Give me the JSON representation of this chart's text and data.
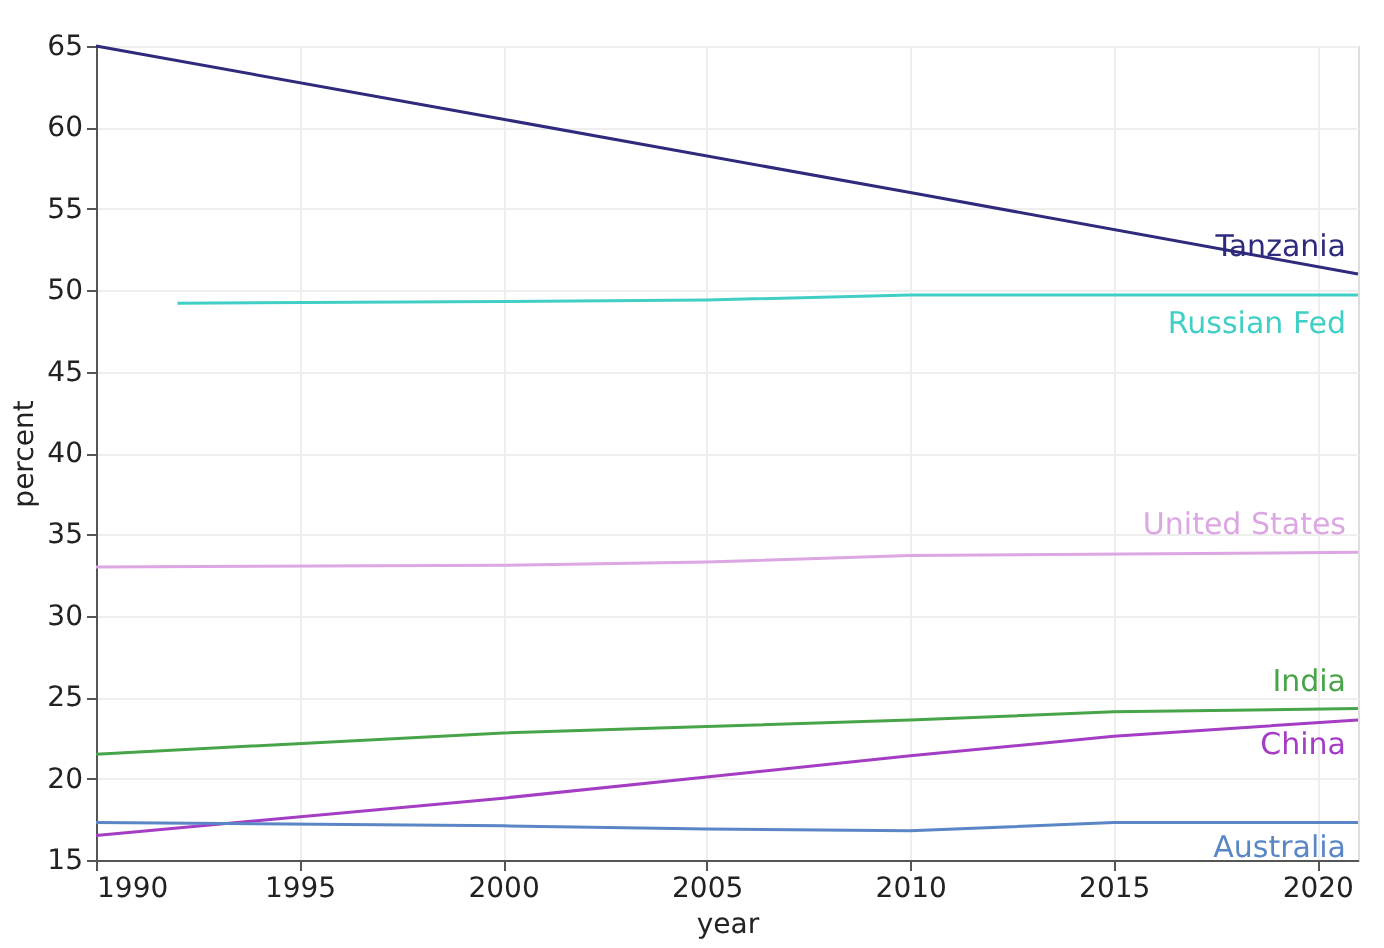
{
  "chart_data": {
    "type": "line",
    "xlabel": "year",
    "ylabel": "percent",
    "xlim": [
      1990,
      2021
    ],
    "xticks": [
      1990,
      1995,
      2000,
      2005,
      2010,
      2015,
      2020
    ],
    "ylim": [
      15,
      65
    ],
    "yticks": [
      15,
      20,
      25,
      30,
      35,
      40,
      45,
      50,
      55,
      60,
      65
    ],
    "grid": true,
    "marker": "none",
    "line_style": "solid",
    "series": [
      {
        "name": "Tanzania",
        "color": "#2e2a7c",
        "x": [
          1990,
          2000,
          2010,
          2021
        ],
        "values": [
          65,
          60.5,
          56,
          51
        ]
      },
      {
        "name": "Russian Fed",
        "color": "#40cfc6",
        "x": [
          1992,
          2000,
          2005,
          2010,
          2021
        ],
        "values": [
          49.2,
          49.3,
          49.4,
          49.7,
          49.7
        ]
      },
      {
        "name": "United States",
        "color": "#dca6e2",
        "x": [
          1990,
          2000,
          2005,
          2010,
          2021
        ],
        "values": [
          33,
          33.1,
          33.3,
          33.7,
          33.9
        ]
      },
      {
        "name": "India",
        "color": "#48a448",
        "x": [
          1990,
          2000,
          2005,
          2010,
          2015,
          2021
        ],
        "values": [
          21.5,
          22.8,
          23.2,
          23.6,
          24.1,
          24.3
        ]
      },
      {
        "name": "China",
        "color": "#a43cc4",
        "x": [
          1990,
          2000,
          2005,
          2010,
          2015,
          2021
        ],
        "values": [
          16.5,
          18.8,
          20.1,
          21.4,
          22.6,
          23.6
        ]
      },
      {
        "name": "Australia",
        "color": "#5a86c6",
        "x": [
          1990,
          2000,
          2005,
          2010,
          2015,
          2021
        ],
        "values": [
          17.3,
          17.1,
          16.9,
          16.8,
          17.3,
          17.3
        ]
      }
    ]
  }
}
